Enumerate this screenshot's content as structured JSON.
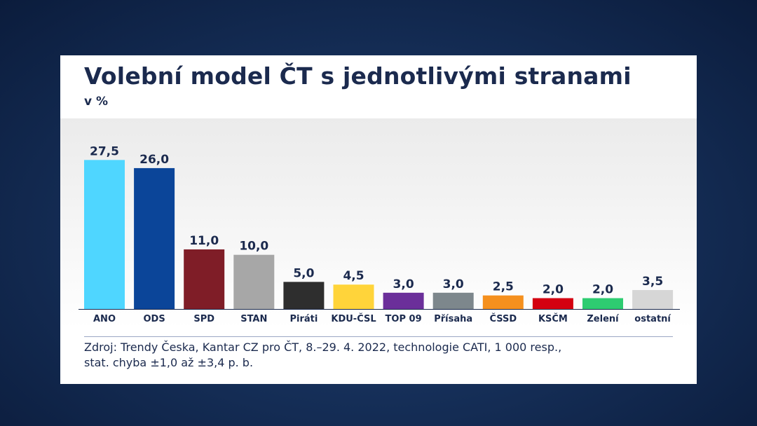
{
  "chart_data": {
    "type": "bar",
    "title": "Volební model ČT s jednotlivými stranami",
    "subtitle": "v %",
    "categories": [
      "ANO",
      "ODS",
      "SPD",
      "STAN",
      "Piráti",
      "KDU-ČSL",
      "TOP 09",
      "Přísaha",
      "ČSSD",
      "KSČM",
      "Zelení",
      "ostatní"
    ],
    "values": [
      27.5,
      26.0,
      11.0,
      10.0,
      5.0,
      4.5,
      3.0,
      3.0,
      2.5,
      2.0,
      2.0,
      3.5
    ],
    "value_labels": [
      "27,5",
      "26,0",
      "11,0",
      "10,0",
      "5,0",
      "4,5",
      "3,0",
      "3,0",
      "2,5",
      "2,0",
      "2,0",
      "3,5"
    ],
    "colors": [
      "#4fd6ff",
      "#0b4599",
      "#7f1d27",
      "#a7a7a7",
      "#2e2e2e",
      "#ffd43a",
      "#6b2f9a",
      "#7d878c",
      "#f5901e",
      "#d40010",
      "#2ecc71",
      "#d6d6d6"
    ],
    "ylim": [
      0,
      30
    ],
    "xlabel": "",
    "ylabel": "",
    "grid": false,
    "legend": "none"
  },
  "source": {
    "line1": "Zdroj: Trendy Česka, Kantar CZ pro ČT, 8.–29. 4. 2022, technologie CATI, 1 000 resp.,",
    "line2": "stat. chyba ±1,0 až ±3,4 p. b."
  }
}
